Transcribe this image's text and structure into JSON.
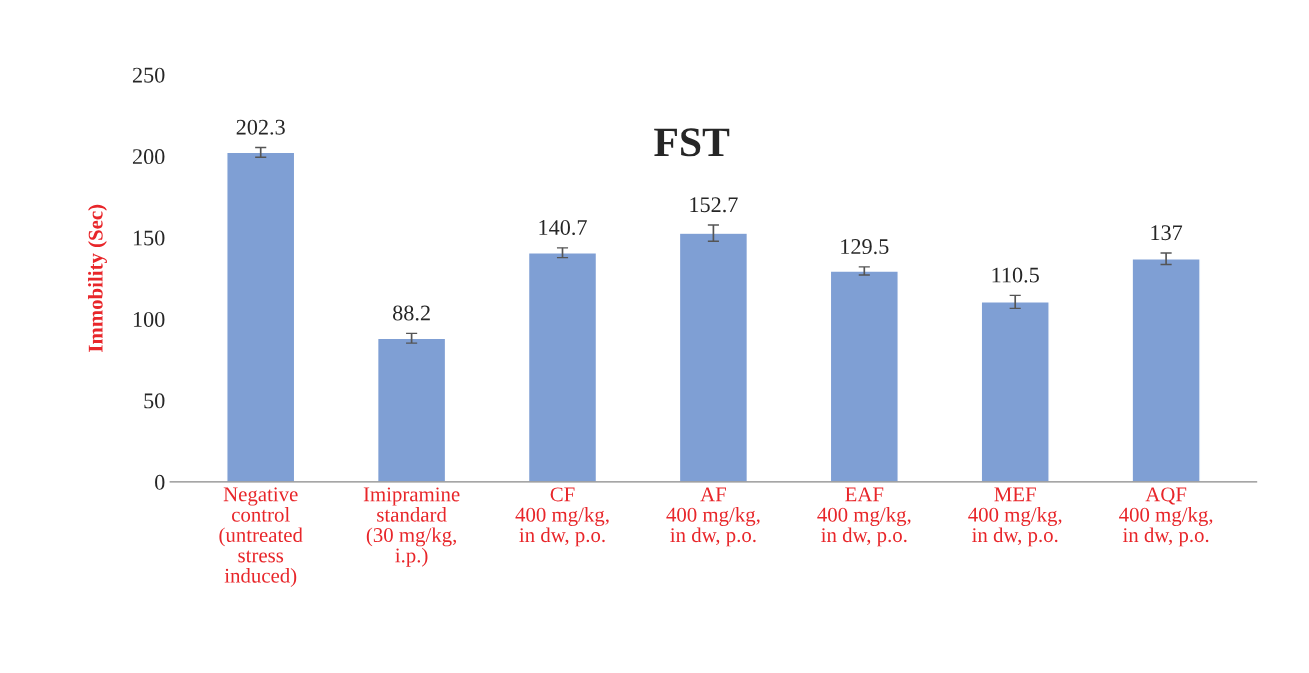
{
  "chart_data": {
    "type": "bar",
    "title": "FST",
    "ylabel": "Immobility (Sec)",
    "categories": [
      "Negative\ncontrol\n(untreated\nstress\ninduced)",
      "Imipramine\nstandard\n(30 mg/kg,\ni.p.)",
      "CF\n400 mg/kg,\nin dw, p.o.",
      "AF\n400 mg/kg,\nin dw, p.o.",
      "EAF\n400 mg/kg,\nin dw, p.o.",
      "MEF\n400 mg/kg,\nin dw, p.o.",
      "AQF\n400 mg/kg,\nin dw, p.o."
    ],
    "values": [
      202.3,
      88.2,
      140.7,
      152.7,
      129.5,
      110.5,
      137
    ],
    "errors": [
      3,
      3,
      3,
      5,
      2.5,
      4,
      3.5
    ],
    "color": "#7f9fd4",
    "data_labels": true,
    "ylim": [
      0,
      250
    ],
    "yticks": [
      0,
      50,
      100,
      150,
      200,
      250
    ],
    "grid": false,
    "legend": false
  }
}
